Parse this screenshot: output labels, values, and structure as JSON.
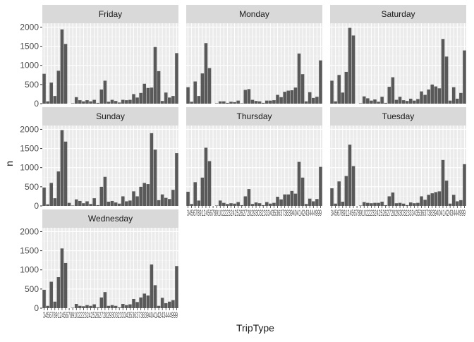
{
  "chart_data": {
    "type": "bar",
    "xlabel": "TripType",
    "ylabel": "n",
    "ylim": [
      0,
      2100
    ],
    "yticks": [
      0,
      500,
      1000,
      1500,
      2000
    ],
    "grid": true,
    "x_ticklabels": "34567891245678910222324252627282930323334353637383940414243444999",
    "categories": [
      "3",
      "4",
      "5",
      "6",
      "7",
      "8",
      "9",
      "12",
      "14",
      "15",
      "18",
      "19",
      "20",
      "21",
      "22",
      "23",
      "24",
      "25",
      "26",
      "27",
      "28",
      "29",
      "30",
      "31",
      "32",
      "33",
      "34",
      "35",
      "36",
      "37",
      "38",
      "39",
      "40",
      "41",
      "42",
      "43",
      "44",
      "999"
    ],
    "bar_color": "#595959",
    "strip_color": "#d9d9d9",
    "panel_color": "#ebebeb",
    "panels": [
      {
        "label": "Friday",
        "values": [
          780,
          60,
          550,
          200,
          860,
          1940,
          1560,
          0,
          10,
          170,
          90,
          60,
          90,
          60,
          100,
          20,
          370,
          600,
          50,
          100,
          70,
          30,
          100,
          90,
          100,
          250,
          160,
          280,
          520,
          410,
          420,
          1480,
          850,
          70,
          290,
          160,
          200,
          1320
        ]
      },
      {
        "label": "Monday",
        "values": [
          430,
          50,
          580,
          200,
          790,
          1580,
          930,
          0,
          10,
          60,
          60,
          20,
          50,
          40,
          80,
          10,
          360,
          380,
          100,
          70,
          60,
          20,
          80,
          80,
          90,
          230,
          170,
          310,
          340,
          350,
          420,
          1310,
          770,
          60,
          300,
          150,
          180,
          1130
        ]
      },
      {
        "label": "Saturday",
        "values": [
          600,
          60,
          750,
          290,
          830,
          1980,
          1780,
          0,
          10,
          190,
          140,
          80,
          110,
          50,
          180,
          20,
          440,
          690,
          100,
          180,
          90,
          70,
          130,
          80,
          120,
          320,
          230,
          370,
          500,
          450,
          400,
          1690,
          1230,
          80,
          430,
          130,
          280,
          1390
        ]
      },
      {
        "label": "Sunday",
        "values": [
          480,
          40,
          600,
          200,
          900,
          1980,
          1680,
          80,
          10,
          170,
          130,
          70,
          120,
          50,
          200,
          20,
          500,
          760,
          110,
          130,
          90,
          60,
          250,
          120,
          140,
          380,
          250,
          500,
          600,
          570,
          1900,
          1470,
          150,
          300,
          210,
          180,
          420,
          1380
        ]
      },
      {
        "label": "Thursday",
        "values": [
          370,
          50,
          620,
          140,
          740,
          1520,
          1170,
          0,
          10,
          140,
          80,
          50,
          70,
          60,
          100,
          20,
          250,
          440,
          50,
          90,
          70,
          20,
          100,
          60,
          80,
          240,
          170,
          300,
          300,
          390,
          320,
          1150,
          740,
          50,
          190,
          120,
          180,
          1020
        ]
      },
      {
        "label": "Tuesday",
        "values": [
          460,
          60,
          640,
          110,
          780,
          1600,
          1040,
          0,
          10,
          100,
          80,
          70,
          80,
          80,
          110,
          20,
          250,
          350,
          70,
          80,
          60,
          20,
          90,
          70,
          80,
          250,
          160,
          290,
          330,
          360,
          380,
          1200,
          660,
          60,
          290,
          120,
          150,
          1090
        ]
      },
      {
        "label": "Wednesday",
        "values": [
          480,
          60,
          690,
          170,
          810,
          1560,
          1180,
          0,
          10,
          110,
          60,
          50,
          80,
          60,
          100,
          20,
          280,
          420,
          60,
          80,
          60,
          20,
          110,
          80,
          100,
          240,
          160,
          280,
          380,
          330,
          1140,
          600,
          60,
          270,
          130,
          170,
          210,
          1100
        ]
      }
    ]
  }
}
